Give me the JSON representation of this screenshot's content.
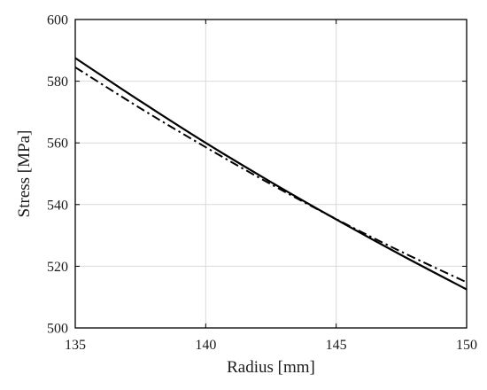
{
  "chart_data": {
    "type": "line",
    "xlabel": "Radius [mm]",
    "ylabel": "Stress [MPa]",
    "xlim": [
      135,
      150
    ],
    "ylim": [
      500,
      600
    ],
    "xticks": [
      135,
      140,
      145,
      150
    ],
    "yticks": [
      500,
      520,
      540,
      560,
      580,
      600
    ],
    "xtick_labels": [
      "135",
      "140",
      "145",
      "150"
    ],
    "ytick_labels": [
      "500",
      "520",
      "540",
      "560",
      "580",
      "600"
    ],
    "grid": true,
    "legend": "none",
    "series": [
      {
        "style": "solid",
        "color": "#000000",
        "x": [
          135,
          137.5,
          140,
          142.5,
          145,
          147.5,
          150
        ],
        "y": [
          587.5,
          573.5,
          560.0,
          547.3,
          535.2,
          523.6,
          512.5
        ]
      },
      {
        "style": "dashdot",
        "color": "#000000",
        "x": [
          135,
          137.5,
          140,
          142.5,
          145,
          147.5,
          150
        ],
        "y": [
          584.5,
          571.2,
          558.6,
          546.6,
          535.3,
          524.7,
          514.8
        ]
      }
    ]
  }
}
